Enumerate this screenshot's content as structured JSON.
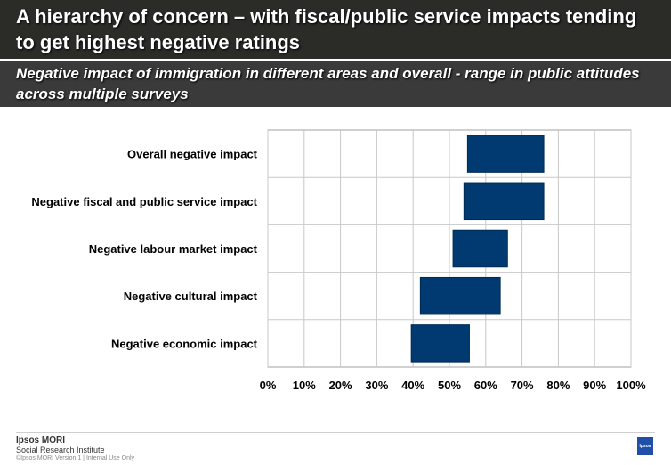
{
  "header": {
    "title": "A hierarchy of concern – with fiscal/public service impacts tending to get highest negative ratings",
    "subtitle": "Negative impact of immigration in different areas and overall - range in public attitudes across multiple surveys"
  },
  "footer": {
    "brand": "Ipsos MORI",
    "sub": "Social Research Institute",
    "small": "©Ipsos MORI   Version 1 | Internal Use Only",
    "logo": "Ipsos"
  },
  "colors": {
    "bar": "#003a70",
    "header_bg": "#2b2b28",
    "grid": "#c8c8c8"
  },
  "chart_data": {
    "type": "bar",
    "orientation": "horizontal-range",
    "categories": [
      "Overall negative impact",
      "Negative fiscal and public service impact",
      "Negative labour market impact",
      "Negative cultural impact",
      "Negative economic impact"
    ],
    "ranges": [
      [
        55,
        76
      ],
      [
        54,
        76
      ],
      [
        51,
        66
      ],
      [
        42,
        64
      ],
      [
        39.5,
        55.5
      ]
    ],
    "xlim": [
      0,
      100
    ],
    "xticks": [
      "0%",
      "10%",
      "20%",
      "30%",
      "40%",
      "50%",
      "60%",
      "70%",
      "80%",
      "90%",
      "100%"
    ],
    "grid": true,
    "legend": "none"
  }
}
